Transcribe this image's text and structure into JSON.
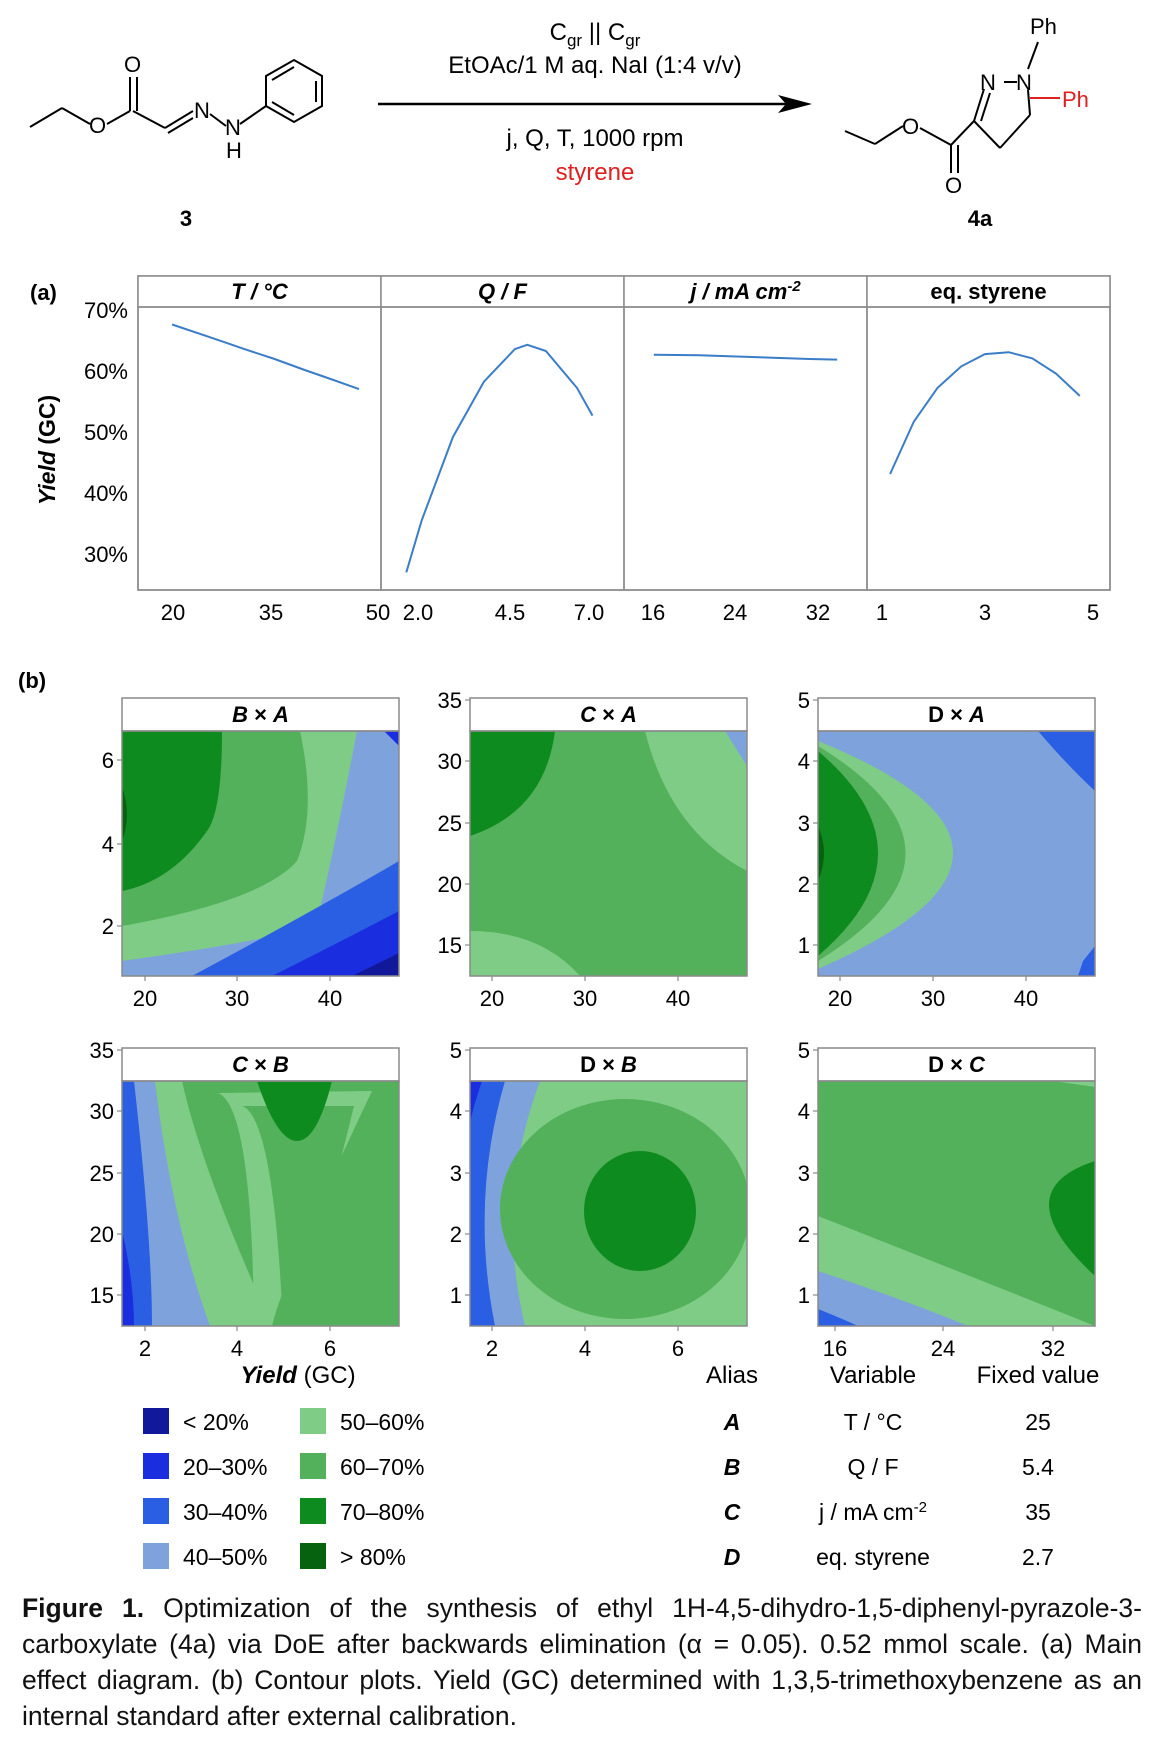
{
  "scheme": {
    "reactant_label": "3",
    "product_label": "4a",
    "conditions_line1_main": "C",
    "conditions_line1_sub": "gr",
    "conditions_line1_sep": " || ",
    "conditions_line2": "EtOAc/1 M aq. NaI (1:4 v/v)",
    "conditions_line3": "j, Q, T, 1000 rpm",
    "conditions_line4": "styrene",
    "atom_O": "O",
    "atom_N": "N",
    "atom_H": "H",
    "group_Ph": "Ph"
  },
  "panel_a": {
    "label": "(a)",
    "ylabel_italic": "Yield",
    "ylabel_rest": " (GC)",
    "yticks": [
      "70%",
      "60%",
      "50%",
      "40%",
      "30%"
    ]
  },
  "panel_b": {
    "label": "(b)"
  },
  "chart_data": [
    {
      "type": "line",
      "panel": "a",
      "title": "T / °C",
      "x": [
        18,
        25,
        30,
        35,
        40,
        45,
        49
      ],
      "y": [
        67.8,
        65.5,
        63.8,
        62.2,
        60.4,
        58.7,
        57.3
      ],
      "xticks": [
        "20",
        "35",
        "50"
      ],
      "xlim": [
        15,
        50
      ],
      "ylim": [
        25,
        72
      ],
      "color": "#3b7dc7"
    },
    {
      "type": "line",
      "panel": "a",
      "title": "Q / F",
      "x": [
        1.5,
        2.0,
        3.0,
        4.0,
        5.0,
        5.4,
        6.0,
        7.0,
        7.5
      ],
      "y": [
        27.5,
        36.0,
        49.5,
        58.5,
        63.8,
        64.5,
        63.5,
        57.5,
        53.0
      ],
      "xticks": [
        "2.0",
        "4.5",
        "7.0"
      ],
      "xlim": [
        1.2,
        8.0
      ],
      "ylim": [
        25,
        72
      ],
      "color": "#3b7dc7"
    },
    {
      "type": "line",
      "panel": "a",
      "title": "j / mA cm-2",
      "x": [
        15,
        20,
        24,
        28,
        32,
        35
      ],
      "y": [
        62.9,
        62.8,
        62.6,
        62.4,
        62.2,
        62.1
      ],
      "xticks": [
        "16",
        "24",
        "32"
      ],
      "xlim": [
        13.5,
        36.5
      ],
      "ylim": [
        25,
        72
      ],
      "color": "#3b7dc7"
    },
    {
      "type": "line",
      "panel": "a",
      "title": "eq. styrene",
      "x": [
        1.0,
        1.5,
        2.0,
        2.5,
        3.0,
        3.5,
        4.0,
        4.5,
        5.0
      ],
      "y": [
        43.5,
        52.0,
        57.5,
        61.0,
        63.0,
        63.3,
        62.3,
        59.8,
        56.2
      ],
      "xticks": [
        "1",
        "3",
        "5"
      ],
      "xlim": [
        0.85,
        5.3
      ],
      "ylim": [
        25,
        72
      ],
      "color": "#3b7dc7"
    },
    {
      "type": "heatmap",
      "panel": "b",
      "title": "B × A",
      "xticks": [
        "20",
        "30",
        "40"
      ],
      "yticks": [
        "6",
        "4",
        "2"
      ]
    },
    {
      "type": "heatmap",
      "panel": "b",
      "title": "C × A",
      "xticks": [
        "20",
        "30",
        "40"
      ],
      "yticks": [
        "35",
        "30",
        "25",
        "20",
        "15"
      ]
    },
    {
      "type": "heatmap",
      "panel": "b",
      "title": "D × A",
      "xticks": [
        "20",
        "30",
        "40"
      ],
      "yticks": [
        "5",
        "4",
        "3",
        "2",
        "1"
      ]
    },
    {
      "type": "heatmap",
      "panel": "b",
      "title": "C × B",
      "xticks": [
        "2",
        "4",
        "6"
      ],
      "yticks": [
        "35",
        "30",
        "25",
        "20",
        "15"
      ]
    },
    {
      "type": "heatmap",
      "panel": "b",
      "title": "D × B",
      "xticks": [
        "2",
        "4",
        "6"
      ],
      "yticks": [
        "5",
        "4",
        "3",
        "2",
        "1"
      ]
    },
    {
      "type": "heatmap",
      "panel": "b",
      "title": "D × C",
      "xticks": [
        "16",
        "24",
        "32"
      ],
      "yticks": [
        "5",
        "4",
        "3",
        "2",
        "1"
      ]
    }
  ],
  "legend": {
    "title_italic": "Yield",
    "title_rest": " (GC)",
    "items": [
      {
        "label": "< 20%",
        "color": "#11189a"
      },
      {
        "label": "20–30%",
        "color": "#1a2ee0"
      },
      {
        "label": "30–40%",
        "color": "#2a5fe3"
      },
      {
        "label": "40–50%",
        "color": "#7ea3dc"
      },
      {
        "label": "50–60%",
        "color": "#7fcc86"
      },
      {
        "label": "60–70%",
        "color": "#52b15a"
      },
      {
        "label": "70–80%",
        "color": "#0e8b1e"
      },
      {
        "label": "> 80%",
        "color": "#06620e"
      }
    ]
  },
  "alias_table": {
    "headers": [
      "Alias",
      "Variable",
      "Fixed value"
    ],
    "rows": [
      [
        "A",
        "T / °C",
        "25"
      ],
      [
        "B",
        "Q / F",
        "5.4"
      ],
      [
        "C",
        "j / mA cm-2",
        "35"
      ],
      [
        "D",
        "eq. styrene",
        "2.7"
      ]
    ]
  },
  "caption": {
    "label": "Figure 1.",
    "text": " Optimization of the synthesis of ethyl 1H-4,5-dihydro-1,5-diphenyl-pyrazole-3-carboxylate (4a) via DoE after backwards elimination (α = 0.05). 0.52 mmol scale. (a) Main effect diagram. (b) Contour plots. Yield (GC) determined with 1,3,5-trimethoxybenzene as an internal standard after external calibration."
  },
  "colors": {
    "line": "#3b7dc7",
    "accent_red": "#e02020",
    "frame": "#8a8a8a"
  }
}
